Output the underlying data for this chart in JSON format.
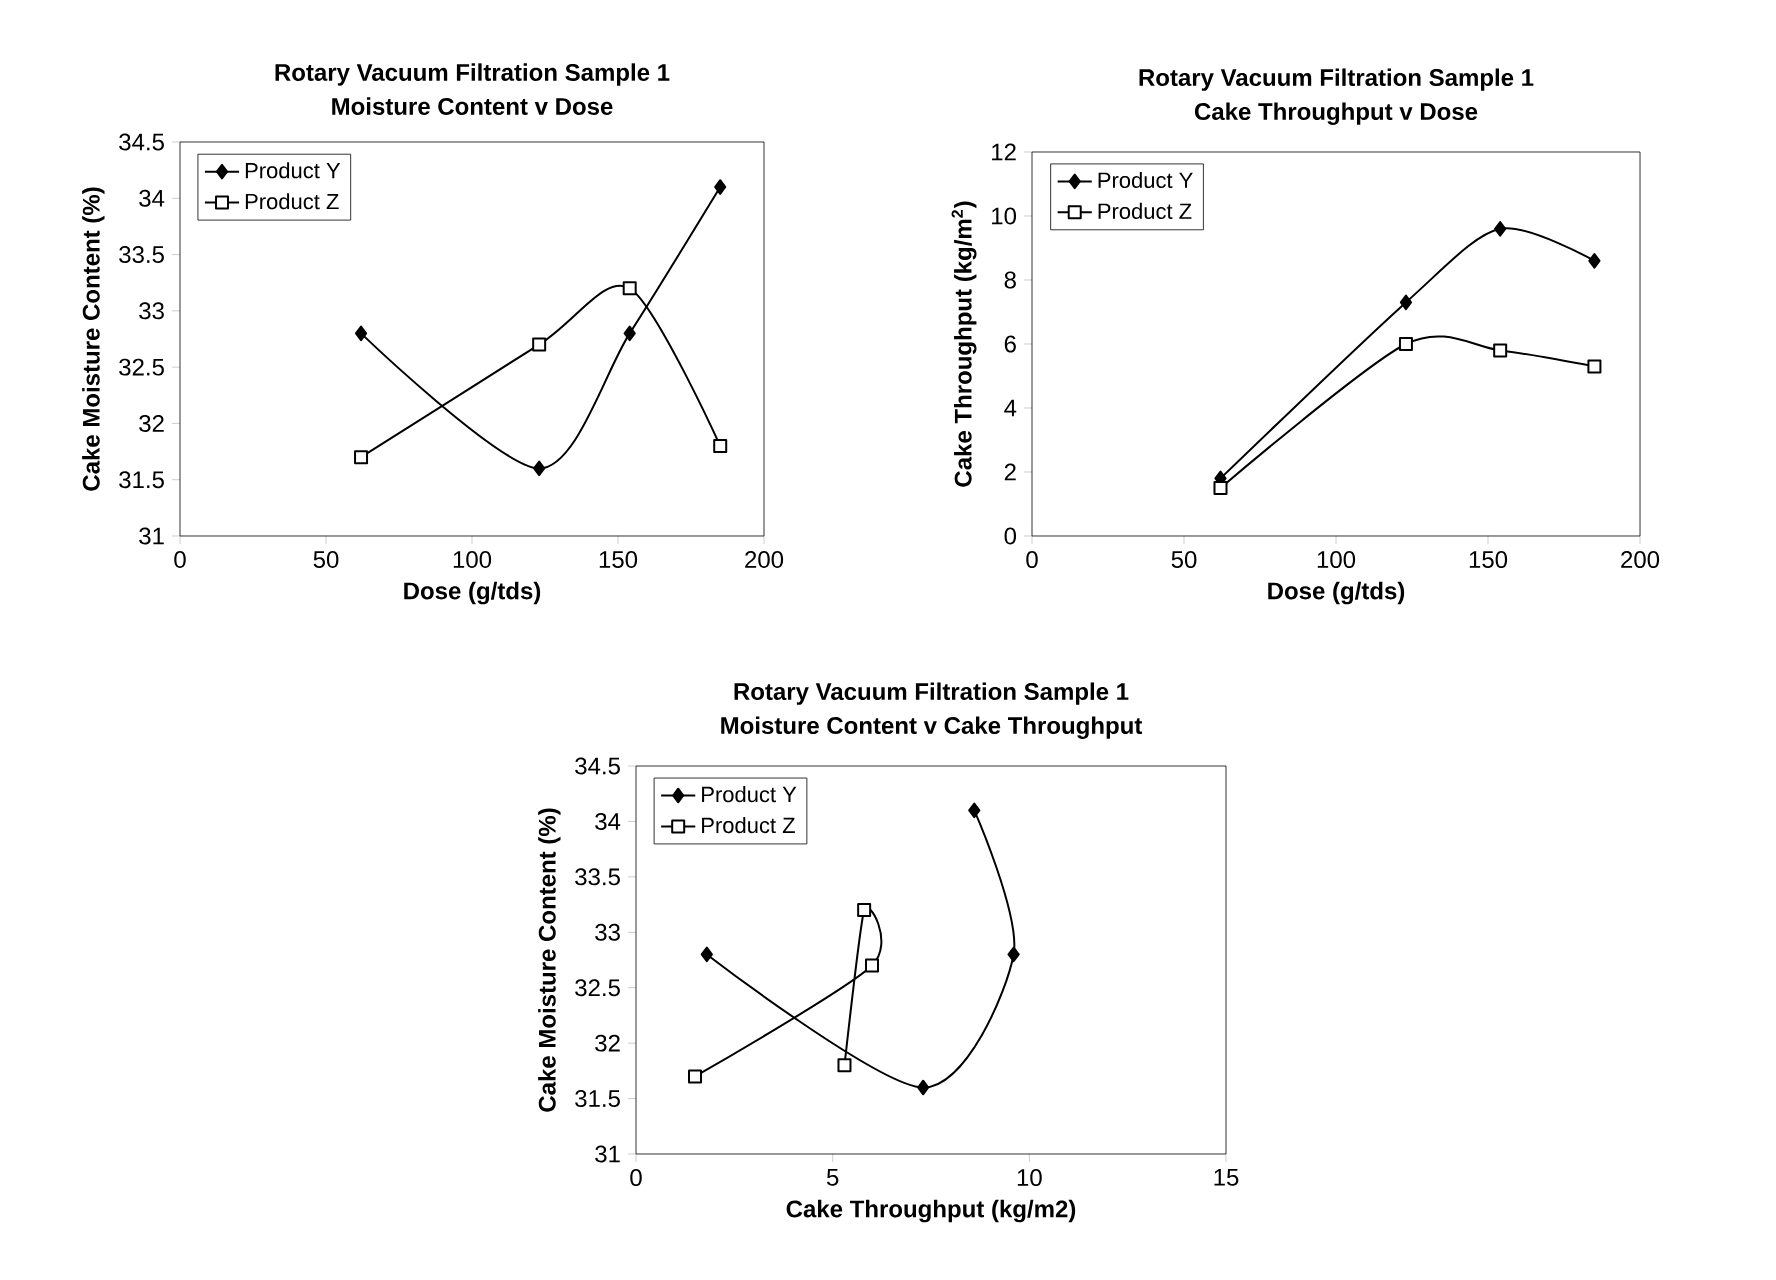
{
  "chart_data": [
    {
      "type": "line",
      "title": "Rotary Vacuum Filtration Sample 1",
      "subtitle": "Moisture Content v Dose",
      "xlabel": "Dose (g/tds)",
      "ylabel": "Cake Moisture Content (%)",
      "x": [
        62,
        123,
        154,
        185
      ],
      "xlim": [
        0,
        200
      ],
      "xticks": [
        0,
        50,
        100,
        150,
        200
      ],
      "ylim": [
        31,
        34.5
      ],
      "yticks": [
        31,
        31.5,
        32,
        32.5,
        33,
        33.5,
        34,
        34.5
      ],
      "legend": "top left",
      "grid": false,
      "series": [
        {
          "name": "Product Y",
          "color": "#000000",
          "marker": "diamond",
          "values": [
            32.8,
            31.6,
            32.8,
            34.1
          ]
        },
        {
          "name": "Product Z",
          "color": "#000000",
          "marker": "square",
          "values": [
            31.7,
            32.7,
            33.2,
            31.8
          ]
        }
      ]
    },
    {
      "type": "line",
      "title": "Rotary Vacuum Filtration Sample 1",
      "subtitle": "Cake Throughput v Dose",
      "xlabel": "Dose (g/tds)",
      "ylabel": "Cake Throughput (kg/m$^{2}$)",
      "x": [
        62,
        123,
        154,
        185
      ],
      "xlim": [
        0,
        200
      ],
      "xticks": [
        0,
        50,
        100,
        150,
        200
      ],
      "ylim": [
        0,
        12
      ],
      "yticks": [
        0,
        2,
        4,
        6,
        8,
        10,
        12
      ],
      "legend": "top left",
      "grid": false,
      "series": [
        {
          "name": "Product Y",
          "color": "#000000",
          "marker": "diamond",
          "values": [
            1.8,
            7.3,
            9.6,
            8.6
          ]
        },
        {
          "name": "Product Z",
          "color": "#000000",
          "marker": "square",
          "values": [
            1.5,
            6.0,
            5.8,
            5.3
          ]
        }
      ]
    },
    {
      "type": "line",
      "title": "Rotary Vacuum Filtration Sample 1",
      "subtitle": "Moisture Content v Cake Throughput",
      "xlabel": "Cake Throughput (kg/m2)",
      "ylabel": "Cake Moisture Content (%)",
      "xlim": [
        0,
        15
      ],
      "xticks": [
        0,
        5,
        10,
        15
      ],
      "ylim": [
        31,
        34.5
      ],
      "yticks": [
        31,
        31.5,
        32,
        32.5,
        33,
        33.5,
        34,
        34.5
      ],
      "legend": "top left",
      "grid": false,
      "series": [
        {
          "name": "Product Y",
          "color": "#000000",
          "marker": "diamond",
          "x": [
            1.8,
            7.3,
            9.6,
            8.6
          ],
          "values": [
            32.8,
            31.6,
            32.8,
            34.1
          ]
        },
        {
          "name": "Product Z",
          "color": "#000000",
          "marker": "square",
          "x": [
            1.5,
            6.0,
            5.8,
            5.3
          ],
          "values": [
            31.7,
            32.7,
            33.2,
            31.8
          ]
        }
      ]
    }
  ]
}
